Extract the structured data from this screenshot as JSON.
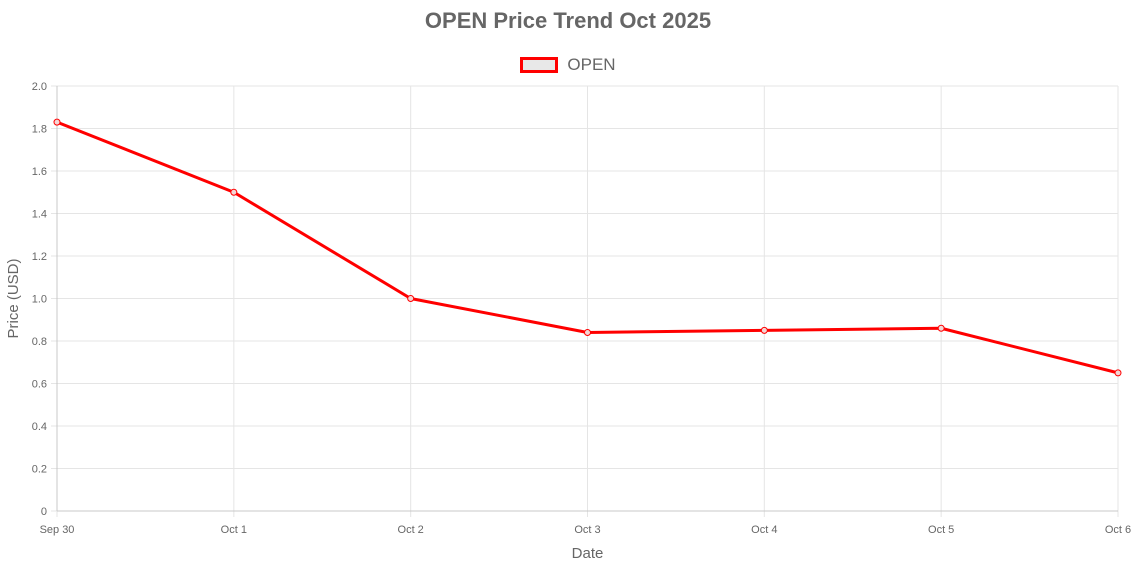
{
  "chart_data": {
    "type": "line",
    "title": "OPEN Price Trend Oct 2025",
    "xlabel": "Date",
    "ylabel": "Price (USD)",
    "categories": [
      "Sep 30",
      "Oct 1",
      "Oct 2",
      "Oct 3",
      "Oct 4",
      "Oct 5",
      "Oct 6"
    ],
    "series": [
      {
        "name": "OPEN",
        "values": [
          1.83,
          1.5,
          1.0,
          0.84,
          0.85,
          0.86,
          0.65
        ],
        "color": "#ff0000"
      }
    ],
    "ylim": [
      0,
      2.0
    ],
    "yticks": [
      0,
      0.2,
      0.4,
      0.6,
      0.8,
      1.0,
      1.2,
      1.4,
      1.6,
      1.8,
      2.0
    ],
    "ytick_labels": [
      "0",
      "0.2",
      "0.4",
      "0.6",
      "0.8",
      "1.0",
      "1.2",
      "1.4",
      "1.6",
      "1.8",
      "2.0"
    ],
    "grid": true,
    "legend_position": "top-center"
  }
}
